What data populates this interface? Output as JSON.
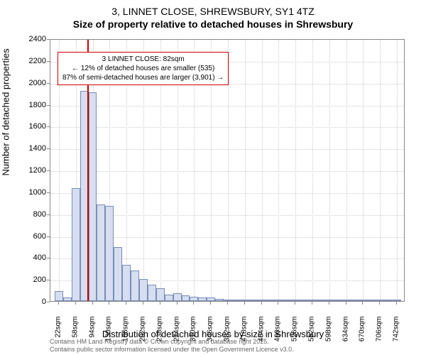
{
  "title_main": "3, LINNET CLOSE, SHREWSBURY, SY1 4TZ",
  "title_sub": "Size of property relative to detached houses in Shrewsbury",
  "y_axis_label": "Number of detached properties",
  "x_axis_label": "Distribution of detached houses by size in Shrewsbury",
  "chart": {
    "type": "histogram",
    "ylim": [
      0,
      2400
    ],
    "ytick_step": 200,
    "x_tick_labels": [
      "22sqm",
      "58sqm",
      "94sqm",
      "130sqm",
      "166sqm",
      "202sqm",
      "238sqm",
      "274sqm",
      "310sqm",
      "346sqm",
      "382sqm",
      "418sqm",
      "454sqm",
      "490sqm",
      "526sqm",
      "562sqm",
      "598sqm",
      "634sqm",
      "670sqm",
      "706sqm",
      "742sqm"
    ],
    "x_tick_step_sqm": 36,
    "x_range_sqm": [
      4,
      760
    ],
    "bars": [
      {
        "x_sqm": 22,
        "value": 90
      },
      {
        "x_sqm": 40,
        "value": 30
      },
      {
        "x_sqm": 58,
        "value": 1030
      },
      {
        "x_sqm": 76,
        "value": 1920
      },
      {
        "x_sqm": 94,
        "value": 1910
      },
      {
        "x_sqm": 112,
        "value": 880
      },
      {
        "x_sqm": 130,
        "value": 870
      },
      {
        "x_sqm": 148,
        "value": 490
      },
      {
        "x_sqm": 166,
        "value": 330
      },
      {
        "x_sqm": 184,
        "value": 280
      },
      {
        "x_sqm": 202,
        "value": 200
      },
      {
        "x_sqm": 220,
        "value": 150
      },
      {
        "x_sqm": 238,
        "value": 120
      },
      {
        "x_sqm": 256,
        "value": 60
      },
      {
        "x_sqm": 274,
        "value": 70
      },
      {
        "x_sqm": 292,
        "value": 50
      },
      {
        "x_sqm": 310,
        "value": 40
      },
      {
        "x_sqm": 328,
        "value": 35
      },
      {
        "x_sqm": 346,
        "value": 30
      },
      {
        "x_sqm": 364,
        "value": 20
      },
      {
        "x_sqm": 382,
        "value": 15
      },
      {
        "x_sqm": 400,
        "value": 15
      },
      {
        "x_sqm": 418,
        "value": 10
      },
      {
        "x_sqm": 436,
        "value": 8
      },
      {
        "x_sqm": 454,
        "value": 6
      },
      {
        "x_sqm": 472,
        "value": 5
      },
      {
        "x_sqm": 490,
        "value": 4
      },
      {
        "x_sqm": 508,
        "value": 3
      },
      {
        "x_sqm": 526,
        "value": 2
      },
      {
        "x_sqm": 544,
        "value": 2
      },
      {
        "x_sqm": 562,
        "value": 2
      },
      {
        "x_sqm": 580,
        "value": 2
      },
      {
        "x_sqm": 598,
        "value": 2
      },
      {
        "x_sqm": 616,
        "value": 2
      },
      {
        "x_sqm": 634,
        "value": 2
      },
      {
        "x_sqm": 652,
        "value": 1
      },
      {
        "x_sqm": 670,
        "value": 1
      },
      {
        "x_sqm": 688,
        "value": 1
      },
      {
        "x_sqm": 706,
        "value": 1
      },
      {
        "x_sqm": 724,
        "value": 1
      },
      {
        "x_sqm": 742,
        "value": 1
      }
    ],
    "bar_fill": "#d6deef",
    "bar_stroke": "#7a8db8",
    "bar_width_sqm": 18,
    "background": "#ffffff",
    "grid_color": "#cccccc",
    "marker": {
      "x_sqm": 82,
      "color": "#cc0000"
    },
    "annotation": {
      "line1": "3 LINNET CLOSE: 82sqm",
      "line2": "← 12% of detached houses are smaller (535)",
      "line3": "87% of semi-detached houses are larger (3,901) →",
      "border_color": "#cc0000",
      "x_sqm": 82,
      "y_value": 2200
    }
  },
  "footer": {
    "line1": "Contains HM Land Registry data © Crown copyright and database right 2025.",
    "line2": "Contains public sector information licensed under the Open Government Licence v3.0."
  }
}
